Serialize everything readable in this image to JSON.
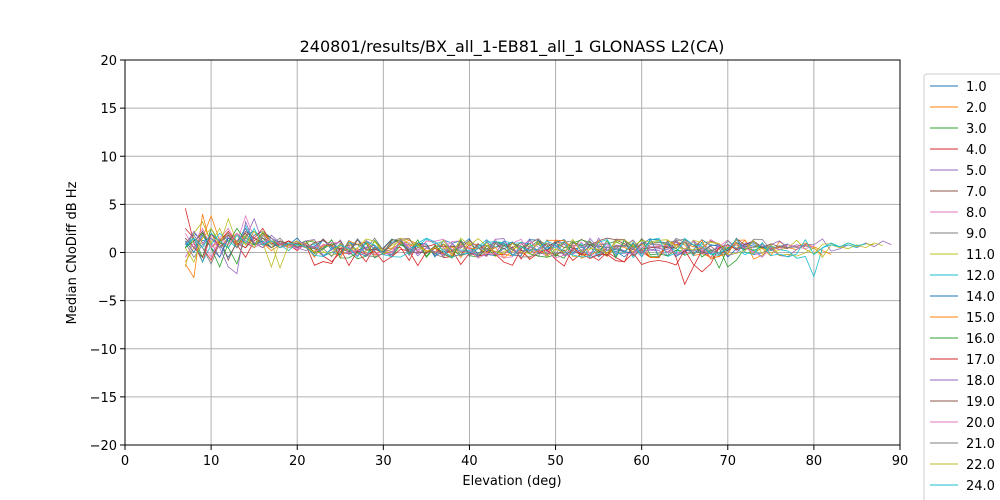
{
  "chart_data": {
    "type": "line",
    "title": "240801/results/BX_all_1-EB81_all_1 GLONASS L2(CA)",
    "xlabel": "Elevation (deg)",
    "ylabel": "Median CNoDiff dB Hz",
    "xlim": [
      0,
      90
    ],
    "ylim": [
      -20,
      20
    ],
    "xticks": [
      0,
      10,
      20,
      30,
      40,
      50,
      60,
      70,
      80,
      90
    ],
    "yticks": [
      -20,
      -15,
      -10,
      -5,
      0,
      5,
      10,
      15,
      20
    ],
    "grid": true,
    "legend_position": "right-outside",
    "series": [
      {
        "name": "1.0",
        "color": "#1f77b4",
        "x_range": [
          7,
          77
        ],
        "start": [
          0.5,
          2.0,
          1.2,
          1.5,
          0.8,
          -0.5,
          1.0,
          0.5,
          1.8,
          2.2,
          1.5,
          1.0,
          0.8,
          1.2,
          0.5
        ],
        "mid": 0.5,
        "end": [
          0.6,
          0.8,
          0.5,
          0.2,
          0.6,
          0.9
        ]
      },
      {
        "name": "2.0",
        "color": "#ff7f0e",
        "x_range": [
          7,
          82
        ],
        "start": [
          -1.0,
          0.5,
          1.5,
          3.8,
          1.2,
          0.5,
          2.0,
          0.8,
          1.5,
          1.0,
          0.2,
          0.8,
          1.2,
          0.5,
          0.8
        ],
        "mid": 0.4,
        "end": [
          0.5,
          0.3,
          0.8,
          0.6,
          0.2,
          -0.2
        ]
      },
      {
        "name": "3.0",
        "color": "#2ca02c",
        "x_range": [
          7,
          75
        ],
        "start": [
          0.8,
          1.5,
          -0.5,
          2.5,
          1.0,
          0.5,
          -1.2,
          1.8,
          2.2,
          1.5,
          0.5,
          1.0,
          0.5,
          0.8,
          1.2
        ],
        "mid": 0.3,
        "end": [
          -1.5,
          -0.8,
          0.5,
          0.2,
          0.6,
          0.3
        ]
      },
      {
        "name": "4.0",
        "color": "#d62728",
        "x_range": [
          7,
          70
        ],
        "start": [
          4.6,
          1.0,
          -1.0,
          2.0,
          0.5,
          1.5,
          0.8,
          -0.5,
          1.2,
          2.0,
          1.0,
          0.5,
          0.8,
          0.2,
          1.0
        ],
        "mid": 0.0,
        "end": [
          -3.3,
          -1.5,
          0.2,
          -0.5,
          0.5,
          0.3
        ]
      },
      {
        "name": "5.0",
        "color": "#9467bd",
        "x_range": [
          7,
          89
        ],
        "start": [
          1.5,
          0.5,
          2.0,
          1.0,
          -0.5,
          1.8,
          0.8,
          1.5,
          3.5,
          1.0,
          0.5,
          1.2,
          0.8,
          0.5,
          0.2
        ],
        "mid": 0.5,
        "end": [
          0.8,
          0.5,
          1.0,
          0.6,
          1.2,
          0.8
        ]
      },
      {
        "name": "7.0",
        "color": "#8c564b",
        "x_range": [
          7,
          72
        ],
        "start": [
          -0.5,
          1.0,
          2.2,
          0.5,
          1.5,
          -0.8,
          1.2,
          2.0,
          0.8,
          1.5,
          1.0,
          0.5,
          1.2,
          0.8,
          0.5
        ],
        "mid": 0.6,
        "end": [
          0.5,
          1.2,
          0.8,
          0.2,
          1.0,
          0.5
        ]
      },
      {
        "name": "8.0",
        "color": "#e377c2",
        "x_range": [
          7,
          76
        ],
        "start": [
          2.0,
          0.5,
          1.0,
          -0.5,
          1.5,
          2.5,
          1.0,
          3.8,
          1.5,
          0.8,
          1.2,
          0.5,
          1.0,
          0.3,
          0.8
        ],
        "mid": 0.4,
        "end": [
          0.2,
          0.8,
          0.5,
          0.9,
          0.4,
          0.6
        ]
      },
      {
        "name": "9.0",
        "color": "#7f7f7f",
        "x_range": [
          7,
          80
        ],
        "start": [
          1.0,
          -0.5,
          0.8,
          1.5,
          0.5,
          1.2,
          2.0,
          1.0,
          0.5,
          1.8,
          0.8,
          1.5,
          0.5,
          1.0,
          0.8
        ],
        "mid": 0.5,
        "end": [
          0.3,
          0.6,
          0.8,
          0.5,
          0.7,
          0.4
        ]
      },
      {
        "name": "11.0",
        "color": "#bcbd22",
        "x_range": [
          7,
          88
        ],
        "start": [
          -1.5,
          2.0,
          3.2,
          1.0,
          2.5,
          0.5,
          1.8,
          0.8,
          2.2,
          1.0,
          -1.5,
          1.2,
          0.5,
          0.8,
          1.0
        ],
        "mid": 0.5,
        "end": [
          0.6,
          0.4,
          0.8,
          0.5,
          1.0,
          0.7
        ]
      },
      {
        "name": "12.0",
        "color": "#17becf",
        "x_range": [
          7,
          85
        ],
        "start": [
          0.5,
          1.5,
          -1.0,
          0.8,
          2.0,
          1.2,
          0.5,
          2.8,
          1.0,
          0.5,
          1.5,
          0.8,
          0.2,
          1.0,
          0.5
        ],
        "mid": 0.4,
        "end": [
          -2.5,
          0.5,
          1.0,
          0.6,
          0.8,
          0.5
        ]
      },
      {
        "name": "14.0",
        "color": "#1f77b4",
        "x_range": [
          7,
          76
        ],
        "start": [
          1.2,
          0.0,
          1.8,
          0.5,
          -0.5,
          1.5,
          1.0,
          2.5,
          0.8,
          1.2,
          0.5,
          1.0,
          0.8,
          1.5,
          0.5
        ],
        "mid": 0.5,
        "end": [
          0.4,
          0.8,
          1.0,
          0.5,
          0.6,
          0.3
        ]
      },
      {
        "name": "15.0",
        "color": "#ff7f0e",
        "x_range": [
          7,
          81
        ],
        "start": [
          -1.2,
          -2.6,
          4.0,
          0.5,
          1.2,
          2.0,
          0.8,
          1.5,
          1.0,
          0.5,
          1.2,
          0.8,
          0.5,
          1.0,
          0.6
        ],
        "mid": 0.3,
        "end": [
          0.5,
          0.8,
          0.6,
          1.0,
          0.5,
          -0.3
        ]
      },
      {
        "name": "16.0",
        "color": "#2ca02c",
        "x_range": [
          7,
          74
        ],
        "start": [
          0.5,
          1.2,
          2.0,
          0.5,
          -1.5,
          1.0,
          2.5,
          1.2,
          0.8,
          2.0,
          1.5,
          0.5,
          1.0,
          0.8,
          1.2
        ],
        "mid": 0.4,
        "end": [
          -1.6,
          0.5,
          0.8,
          0.3,
          0.6,
          0.5
        ]
      },
      {
        "name": "17.0",
        "color": "#d62728",
        "x_range": [
          7,
          72
        ],
        "start": [
          2.5,
          1.5,
          0.5,
          -0.8,
          1.2,
          2.2,
          1.0,
          0.5,
          1.5,
          2.5,
          1.0,
          0.8,
          1.2,
          0.5,
          0.8
        ],
        "mid": -0.5,
        "end": [
          -2.0,
          -1.2,
          0.5,
          0.8,
          0.3,
          0.6
        ]
      },
      {
        "name": "18.0",
        "color": "#9467bd",
        "x_range": [
          7,
          79
        ],
        "start": [
          0.8,
          2.2,
          1.0,
          1.5,
          0.5,
          -1.5,
          -2.2,
          3.2,
          1.0,
          0.5,
          1.8,
          1.0,
          0.8,
          0.5,
          1.2
        ],
        "mid": 0.5,
        "end": [
          0.6,
          0.8,
          1.2,
          0.5,
          0.8,
          0.6
        ]
      },
      {
        "name": "19.0",
        "color": "#8c564b",
        "x_range": [
          7,
          77
        ],
        "start": [
          1.5,
          0.5,
          -0.5,
          2.0,
          1.0,
          1.8,
          0.5,
          2.2,
          1.5,
          1.0,
          0.5,
          1.2,
          0.8,
          1.0,
          0.5
        ],
        "mid": 0.5,
        "end": [
          0.8,
          1.2,
          0.5,
          0.9,
          0.6,
          0.4
        ]
      },
      {
        "name": "20.0",
        "color": "#e377c2",
        "x_range": [
          7,
          80
        ],
        "start": [
          -0.5,
          1.0,
          2.5,
          0.5,
          1.5,
          0.8,
          2.0,
          1.2,
          0.5,
          1.0,
          1.5,
          0.8,
          0.5,
          1.2,
          0.8
        ],
        "mid": 0.4,
        "end": [
          0.5,
          0.3,
          0.8,
          0.6,
          0.4,
          0.7
        ]
      },
      {
        "name": "21.0",
        "color": "#7f7f7f",
        "x_range": [
          7,
          78
        ],
        "start": [
          1.0,
          1.8,
          0.5,
          -1.2,
          1.0,
          2.0,
          0.5,
          1.5,
          1.0,
          0.8,
          1.2,
          0.5,
          1.0,
          0.6,
          0.8
        ],
        "mid": 0.5,
        "end": [
          0.6,
          0.8,
          0.4,
          0.7,
          0.5,
          0.6
        ]
      },
      {
        "name": "22.0",
        "color": "#bcbd22",
        "x_range": [
          7,
          87
        ],
        "start": [
          0.5,
          -1.0,
          1.5,
          2.5,
          0.8,
          3.5,
          1.0,
          1.8,
          0.5,
          2.2,
          1.0,
          -1.6,
          0.8,
          1.2,
          0.5
        ],
        "mid": 0.5,
        "end": [
          0.8,
          0.5,
          1.0,
          0.6,
          0.9,
          0.8
        ]
      },
      {
        "name": "24.0",
        "color": "#17becf",
        "x_range": [
          7,
          86
        ],
        "start": [
          0.8,
          1.5,
          0.5,
          2.0,
          1.2,
          0.5,
          1.8,
          1.0,
          2.5,
          0.8,
          1.2,
          0.5,
          1.0,
          0.8,
          0.6
        ],
        "mid": 0.5,
        "end": [
          0.5,
          0.8,
          0.6,
          1.0,
          0.7,
          0.9
        ]
      }
    ]
  }
}
